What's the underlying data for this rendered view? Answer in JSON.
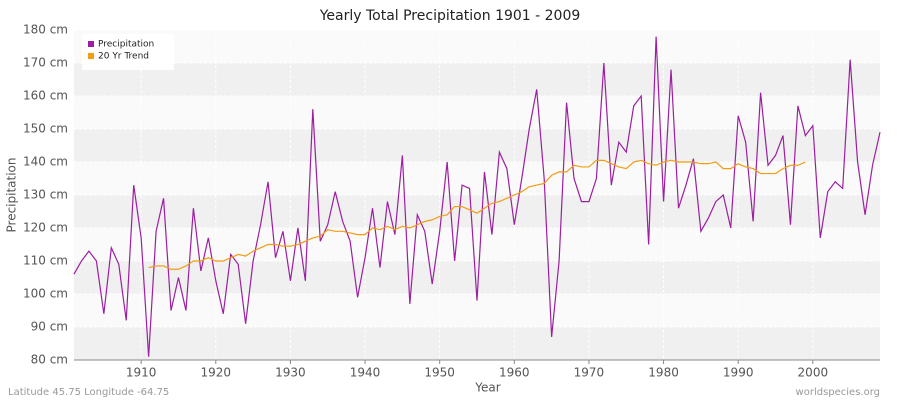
{
  "chart_data": {
    "type": "line",
    "title": "Yearly Total Precipitation 1901 - 2009",
    "x_label": "Year",
    "y_label": "Precipitation",
    "footer_left": "Latitude 45.75 Longitude -64.75",
    "footer_right": "worldspecies.org",
    "x": [
      1901,
      1902,
      1903,
      1904,
      1905,
      1906,
      1907,
      1908,
      1909,
      1910,
      1911,
      1912,
      1913,
      1914,
      1915,
      1916,
      1917,
      1918,
      1919,
      1920,
      1921,
      1922,
      1923,
      1924,
      1925,
      1926,
      1927,
      1928,
      1929,
      1930,
      1931,
      1932,
      1933,
      1934,
      1935,
      1936,
      1937,
      1938,
      1939,
      1940,
      1941,
      1942,
      1943,
      1944,
      1945,
      1946,
      1947,
      1948,
      1949,
      1950,
      1951,
      1952,
      1953,
      1954,
      1955,
      1956,
      1957,
      1958,
      1959,
      1960,
      1961,
      1962,
      1963,
      1964,
      1965,
      1966,
      1967,
      1968,
      1969,
      1970,
      1971,
      1972,
      1973,
      1974,
      1975,
      1976,
      1977,
      1978,
      1979,
      1980,
      1981,
      1982,
      1983,
      1984,
      1985,
      1986,
      1987,
      1988,
      1989,
      1990,
      1991,
      1992,
      1993,
      1994,
      1995,
      1996,
      1997,
      1998,
      1999,
      2000,
      2001,
      2002,
      2003,
      2004,
      2005,
      2006,
      2007,
      2008,
      2009
    ],
    "series": [
      {
        "name": "Precipitation",
        "color": "#9b1fa0",
        "values": [
          106,
          110,
          113,
          110,
          94,
          114,
          109,
          92,
          133,
          117,
          81,
          119,
          129,
          95,
          105,
          95,
          126,
          107,
          117,
          104,
          94,
          112,
          109,
          91,
          110,
          121,
          134,
          111,
          119,
          104,
          120,
          104,
          156,
          116,
          121,
          131,
          122,
          116,
          99,
          111,
          126,
          108,
          128,
          118,
          142,
          97,
          124,
          119,
          103,
          119,
          140,
          110,
          133,
          132,
          98,
          137,
          118,
          143,
          138,
          121,
          135,
          150,
          162,
          135,
          87,
          110,
          158,
          135,
          128,
          128,
          135,
          170,
          133,
          146,
          143,
          157,
          160,
          115,
          178,
          128,
          168,
          126,
          133,
          141,
          119,
          123,
          128,
          130,
          120,
          154,
          146,
          122,
          161,
          139,
          142,
          148,
          121,
          157,
          148,
          151,
          117,
          131,
          134,
          132,
          171,
          140,
          124,
          139,
          149
        ]
      },
      {
        "name": "20 Yr Trend",
        "color": "#f39c12",
        "values": [
          null,
          null,
          null,
          null,
          null,
          null,
          null,
          null,
          null,
          null,
          108,
          108.5,
          108.5,
          107.5,
          107.5,
          108.5,
          110,
          110,
          111,
          110,
          110,
          111,
          112,
          111.5,
          113,
          114,
          115,
          115,
          114.5,
          114.5,
          115,
          116,
          117,
          117.5,
          119.5,
          119,
          119,
          118.5,
          118,
          118,
          120,
          119.5,
          120.5,
          119.5,
          120.5,
          120,
          121,
          122,
          122.5,
          123.5,
          124,
          126.5,
          126.5,
          125.5,
          124.5,
          126,
          127.5,
          128,
          129,
          130,
          131,
          132.5,
          133,
          133.5,
          136,
          137,
          137,
          139,
          138.5,
          138.5,
          140.5,
          140.5,
          139.5,
          138.5,
          138,
          140,
          140.5,
          139.5,
          139,
          140,
          140.5,
          140,
          140,
          140,
          139.5,
          139.5,
          140,
          138,
          138,
          139.5,
          138.5,
          138,
          136.5,
          136.5,
          136.5,
          138,
          139,
          139,
          140,
          null,
          null,
          null,
          null,
          null,
          null,
          null,
          null,
          null,
          null
        ]
      }
    ],
    "xlim": [
      1901,
      2009
    ],
    "xticks": [
      1910,
      1920,
      1930,
      1940,
      1950,
      1960,
      1970,
      1980,
      1990,
      2000
    ],
    "ylim": [
      80,
      180
    ],
    "yticks": [
      {
        "value": 80,
        "label": "80 cm"
      },
      {
        "value": 90,
        "label": "90 cm"
      },
      {
        "value": 100,
        "label": "100 cm"
      },
      {
        "value": 110,
        "label": "110 cm"
      },
      {
        "value": 120,
        "label": "120 cm"
      },
      {
        "value": 130,
        "label": "130 cm"
      },
      {
        "value": 140,
        "label": "140 cm"
      },
      {
        "value": 150,
        "label": "150 cm"
      },
      {
        "value": 160,
        "label": "160 cm"
      },
      {
        "value": 170,
        "label": "170 cm"
      },
      {
        "value": 180,
        "label": "180 cm"
      }
    ],
    "grid": true,
    "legend": "upper left"
  }
}
